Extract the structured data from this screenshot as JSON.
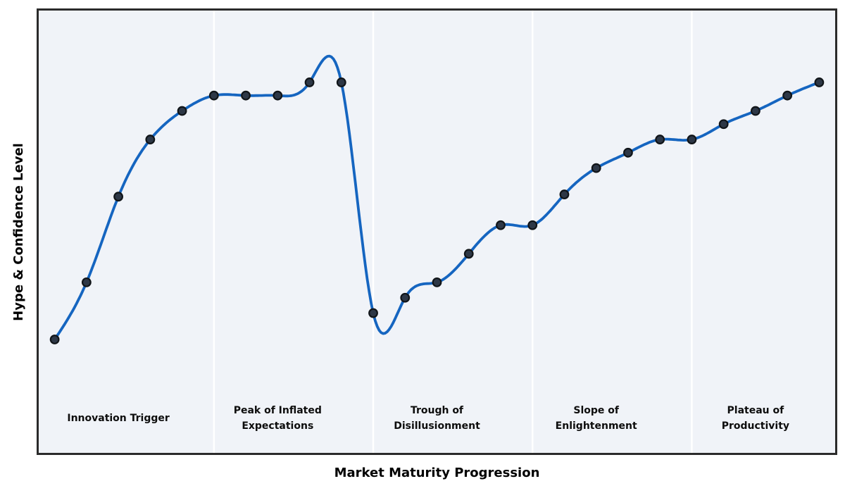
{
  "chart_data": {
    "type": "line",
    "title": "",
    "xlabel": "Market Maturity Progression",
    "ylabel": "Hype & Confidence Level",
    "x": [
      1,
      2,
      3,
      4,
      5,
      6,
      7,
      8,
      9,
      10,
      11,
      12,
      13,
      14,
      15,
      16,
      17,
      18,
      19,
      20,
      21,
      22,
      23,
      24,
      25
    ],
    "y": [
      25,
      38,
      57.5,
      70.5,
      77,
      80.5,
      80.5,
      80.5,
      83.5,
      83.5,
      31,
      34.5,
      38,
      44.5,
      51,
      51,
      58,
      64,
      67.5,
      70.5,
      70.5,
      74,
      77,
      80.5,
      83.5
    ],
    "xlim": [
      0.5,
      25.5
    ],
    "ylim": [
      0,
      100
    ],
    "grid": false,
    "legend": false,
    "ticks": "none",
    "marker": "circle",
    "interpolation": "cubic-spline",
    "phases": [
      {
        "label": "Innovation Trigger",
        "lines": "Innovation Trigger",
        "center_x": 3
      },
      {
        "label": "Peak of Inflated Expectations",
        "lines": "Peak of Inflated\nExpectations",
        "center_x": 8
      },
      {
        "label": "Trough of Disillusionment",
        "lines": "Trough of\nDisillusionment",
        "center_x": 13
      },
      {
        "label": "Slope of Enlightenment",
        "lines": "Slope of\nEnlightenment",
        "center_x": 18
      },
      {
        "label": "Plateau of Productivity",
        "lines": "Plateau of\nProductivity",
        "center_x": 23
      }
    ],
    "phase_divider_x": [
      6,
      11,
      16,
      21
    ],
    "colors": {
      "line": "#1565c0",
      "marker_fill": "#2d3746",
      "marker_edge": "#101418",
      "plot_bg": "#f0f3f8",
      "figure_bg": "#ffffff",
      "border": "#2b2b2b",
      "divider": "#ffffff",
      "text": "#000000"
    }
  }
}
